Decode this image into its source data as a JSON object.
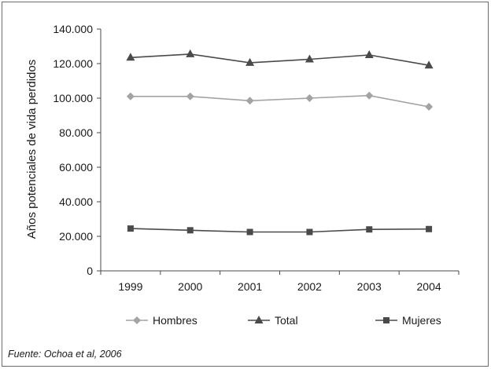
{
  "chart_data": {
    "type": "line",
    "title": "",
    "xlabel": "",
    "ylabel": "Años potenciales de vida perdidos",
    "categories": [
      "1999",
      "2000",
      "2001",
      "2002",
      "2003",
      "2004"
    ],
    "ylim": [
      0,
      140000
    ],
    "yticks": [
      0,
      20000,
      40000,
      60000,
      80000,
      100000,
      120000,
      140000
    ],
    "ytick_labels": [
      "0",
      "20.000",
      "40.000",
      "60.000",
      "80.000",
      "100.000",
      "120.000",
      "140.000"
    ],
    "grid": false,
    "legend_position": "bottom",
    "series": [
      {
        "name": "Hombres",
        "marker": "diamond",
        "color": "#a3a3a3",
        "values": [
          101000,
          101000,
          98500,
          100000,
          101500,
          95000
        ]
      },
      {
        "name": "Total",
        "marker": "triangle",
        "color": "#4a4a4a",
        "values": [
          123500,
          125500,
          120500,
          122500,
          125000,
          119000
        ]
      },
      {
        "name": "Mujeres",
        "marker": "square",
        "color": "#4a4a4a",
        "values": [
          24500,
          23500,
          22500,
          22500,
          24000,
          24200
        ]
      }
    ]
  },
  "source_note": "Fuente: Ochoa et al, 2006"
}
